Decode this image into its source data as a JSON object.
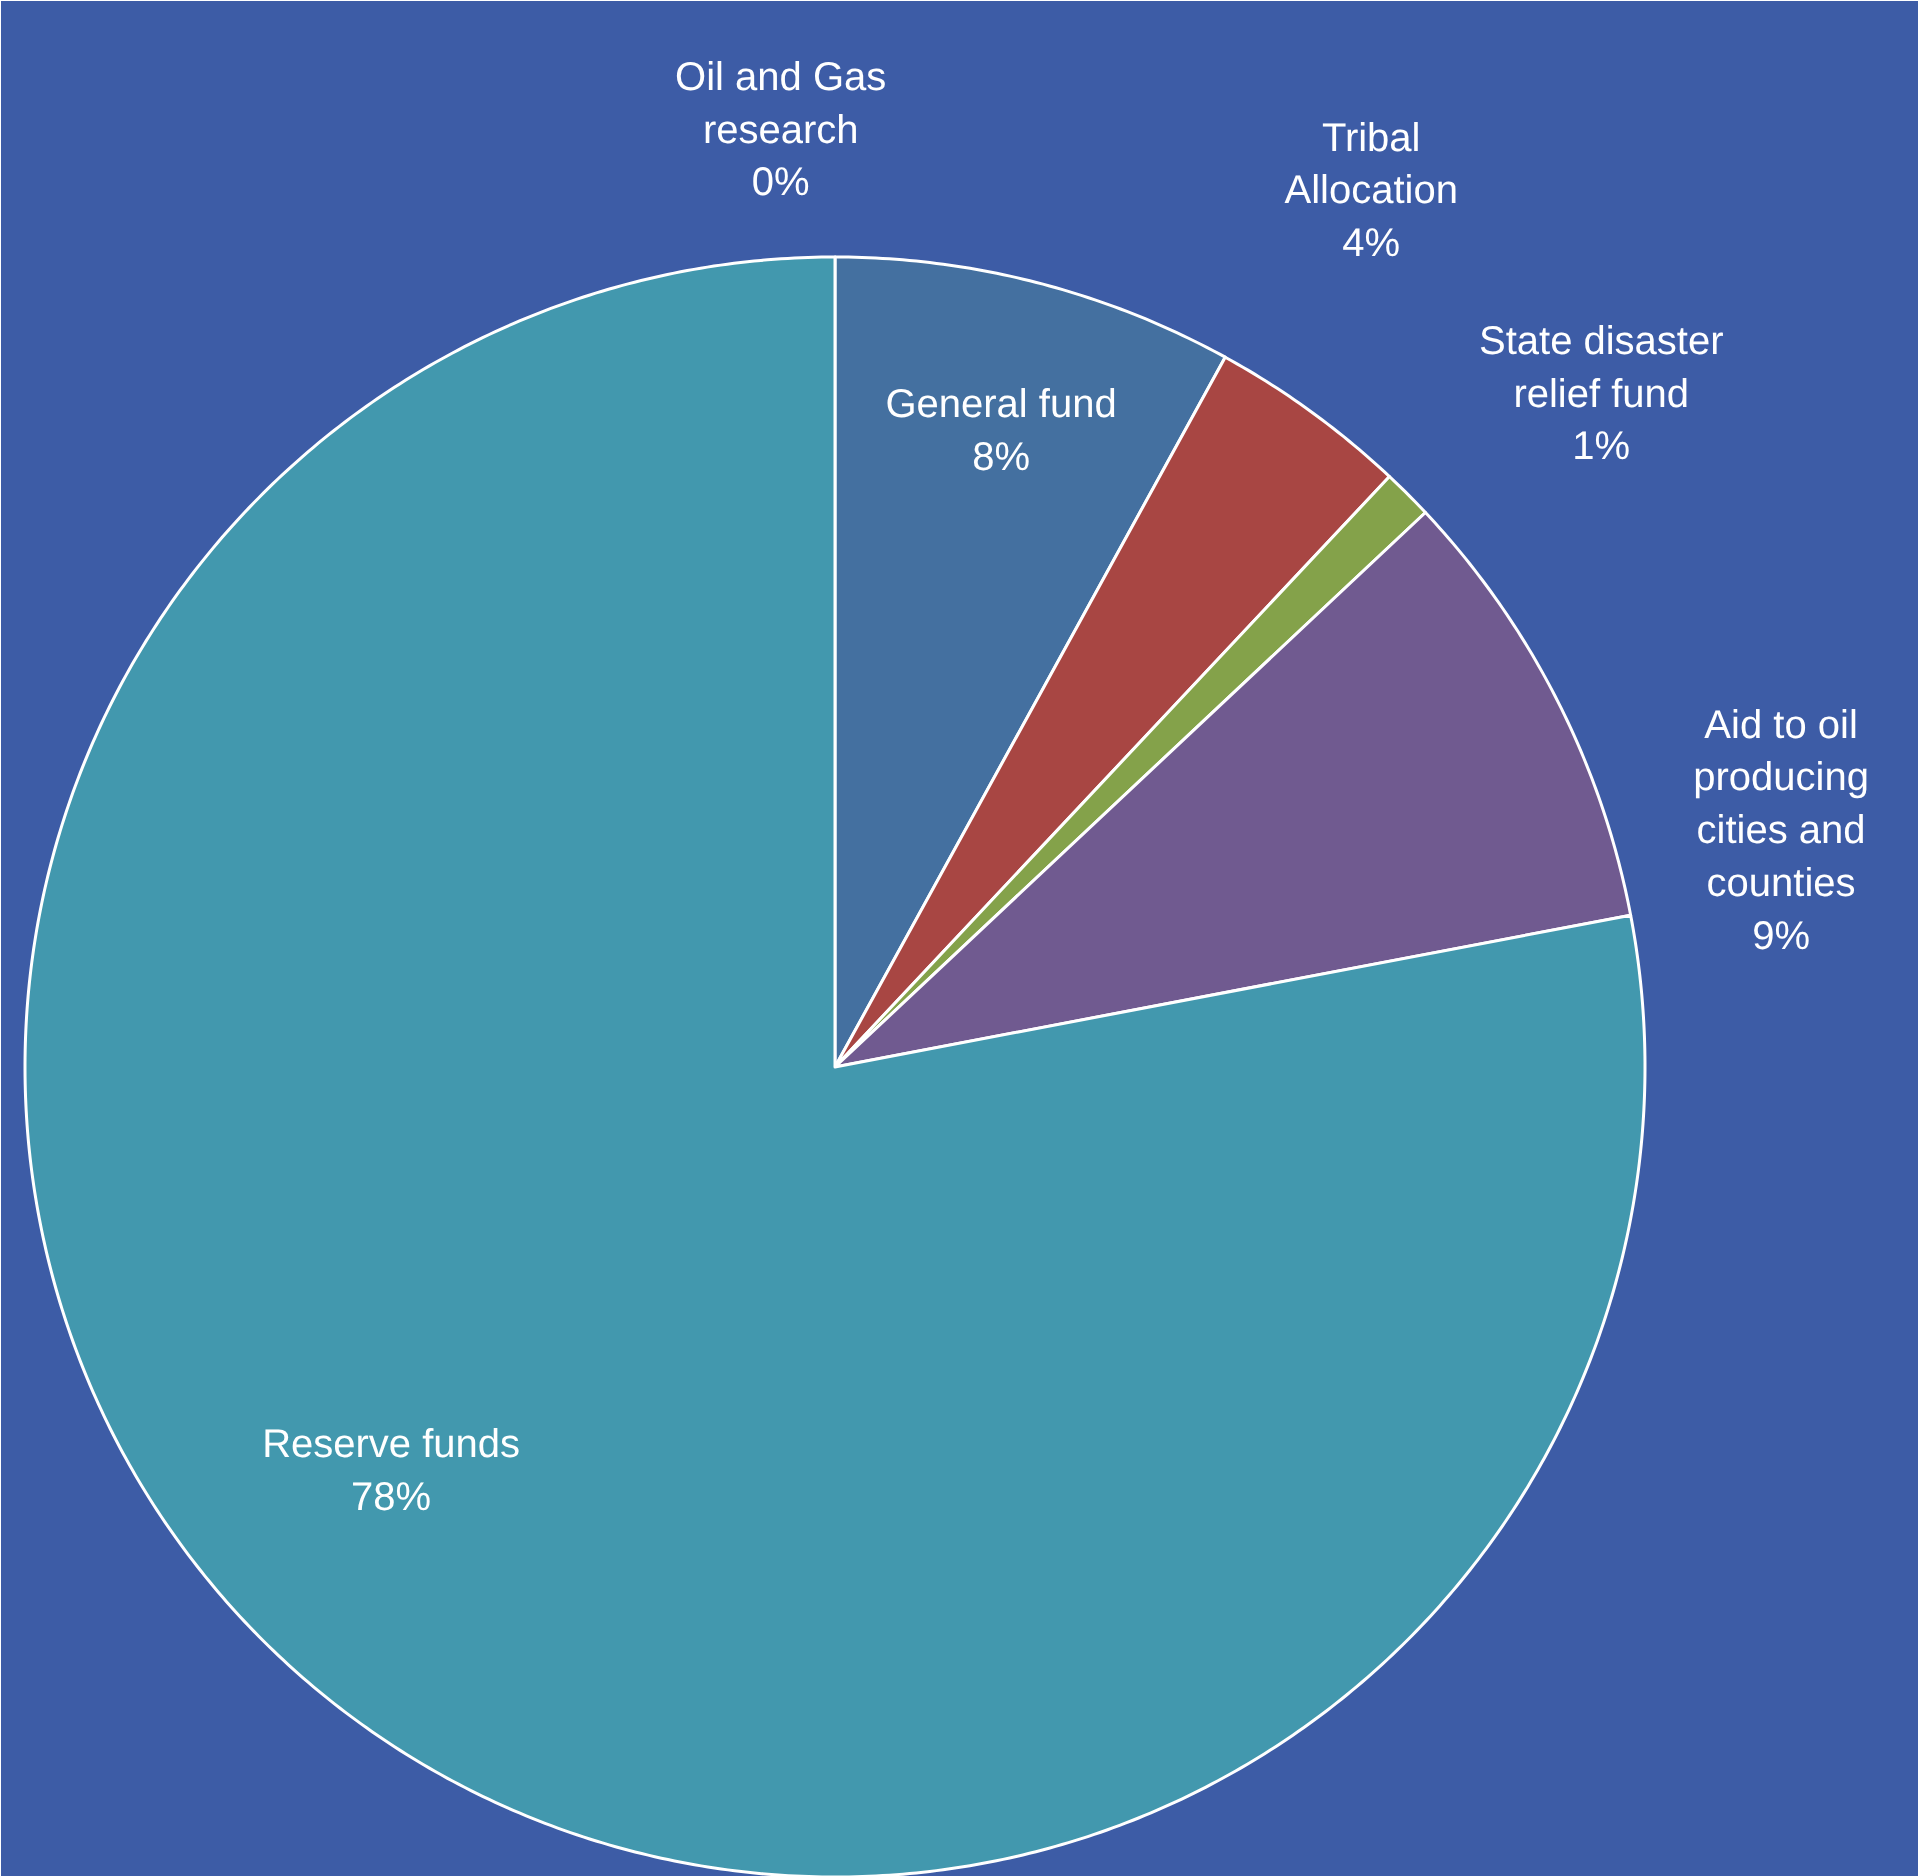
{
  "chart_data": {
    "type": "pie",
    "categories": [
      "Oil and Gas research",
      "General fund",
      "Tribal Allocation",
      "State disaster relief fund",
      "Aid to oil producing cities and counties",
      "Reserve funds"
    ],
    "values": [
      0,
      8,
      4,
      1,
      9,
      78
    ],
    "value_labels": [
      "0%",
      "8%",
      "4%",
      "1%",
      "9%",
      "78%"
    ],
    "colors": [
      "#e07b39",
      "#4470a0",
      "#a84643",
      "#84a24a",
      "#705a90",
      "#4298ae"
    ],
    "legend": false
  }
}
